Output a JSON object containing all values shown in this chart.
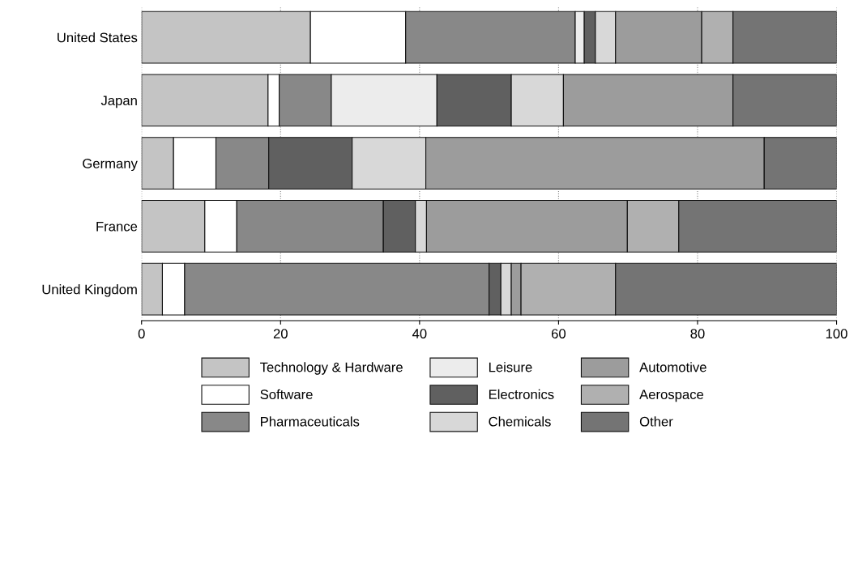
{
  "chart_data": {
    "type": "bar",
    "orientation": "horizontal",
    "stacked": true,
    "categories": [
      "United States",
      "Japan",
      "Germany",
      "France",
      "United Kingdom"
    ],
    "series": [
      {
        "name": "Technology & Hardware",
        "color": "#c4c4c4",
        "values": [
          24.3,
          18.2,
          4.6,
          9.1,
          3.0
        ]
      },
      {
        "name": "Software",
        "color": "#ffffff",
        "values": [
          13.7,
          1.6,
          6.1,
          4.6,
          3.2
        ]
      },
      {
        "name": "Pharmaceuticals",
        "color": "#888888",
        "values": [
          24.4,
          7.5,
          7.6,
          21.1,
          43.8
        ]
      },
      {
        "name": "Leisure",
        "color": "#ececec",
        "values": [
          1.3,
          15.2,
          0,
          0,
          0
        ]
      },
      {
        "name": "Electronics",
        "color": "#606060",
        "values": [
          1.6,
          10.7,
          12.0,
          4.6,
          1.7
        ]
      },
      {
        "name": "Chemicals",
        "color": "#d8d8d8",
        "values": [
          2.9,
          7.5,
          10.6,
          1.6,
          1.5
        ]
      },
      {
        "name": "Automotive",
        "color": "#9c9c9c",
        "values": [
          12.4,
          24.4,
          48.7,
          28.9,
          1.4
        ]
      },
      {
        "name": "Aerospace",
        "color": "#b0b0b0",
        "values": [
          4.5,
          0,
          0,
          7.4,
          13.6
        ]
      },
      {
        "name": "Other",
        "color": "#747474",
        "values": [
          14.9,
          14.9,
          10.4,
          22.7,
          31.8
        ]
      }
    ],
    "xlim": [
      0,
      100
    ],
    "xticks": [
      0,
      20,
      40,
      60,
      80,
      100
    ],
    "grid": "x",
    "legend": "bottom"
  }
}
